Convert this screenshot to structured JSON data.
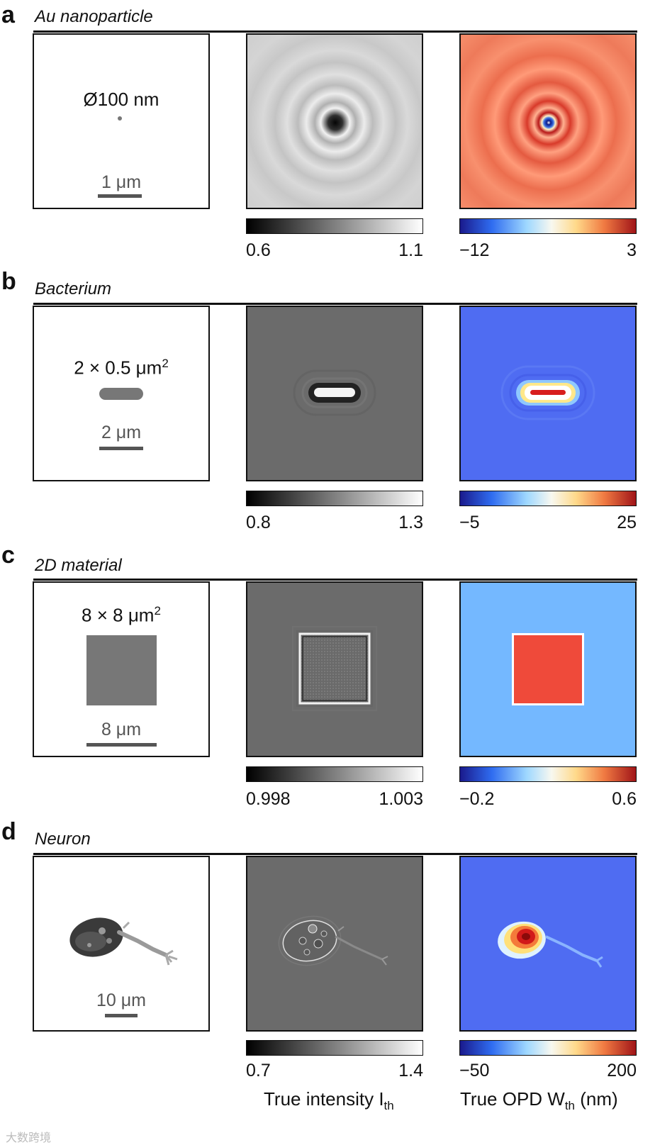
{
  "panels": [
    {
      "letter": "a",
      "title": "Au nanoparticle",
      "dimension": "Ø100 nm",
      "scalebar": "1 μm",
      "intensity_range": [
        "0.6",
        "1.1"
      ],
      "opd_range": [
        "−12",
        "3"
      ]
    },
    {
      "letter": "b",
      "title": "Bacterium",
      "dimension": "2 × 0.5 μm",
      "dimension_sup": "2",
      "scalebar": "2 μm",
      "intensity_range": [
        "0.8",
        "1.3"
      ],
      "opd_range": [
        "−5",
        "25"
      ]
    },
    {
      "letter": "c",
      "title": "2D material",
      "dimension": "8 × 8 μm",
      "dimension_sup": "2",
      "scalebar": "8 μm",
      "intensity_range": [
        "0.998",
        "1.003"
      ],
      "opd_range": [
        "−0.2",
        "0.6"
      ]
    },
    {
      "letter": "d",
      "title": "Neuron",
      "scalebar": "10 μm",
      "intensity_range": [
        "0.7",
        "1.4"
      ],
      "opd_range": [
        "−50",
        "200"
      ]
    }
  ],
  "axis_titles": {
    "intensity": "True intensity I",
    "intensity_sub": "th",
    "opd": "True OPD W",
    "opd_sub": "th",
    "opd_unit": " (nm)"
  },
  "watermark": "大数跨境",
  "colors": {
    "intensity_background": "#cfcfcf",
    "gray_background": "#6b6b6b",
    "opd_a_background": "#f08766",
    "opd_blue_background": "#4f6cf2",
    "opd_c_background": "#74b8ff",
    "opd_red": "#ef4a3a"
  }
}
